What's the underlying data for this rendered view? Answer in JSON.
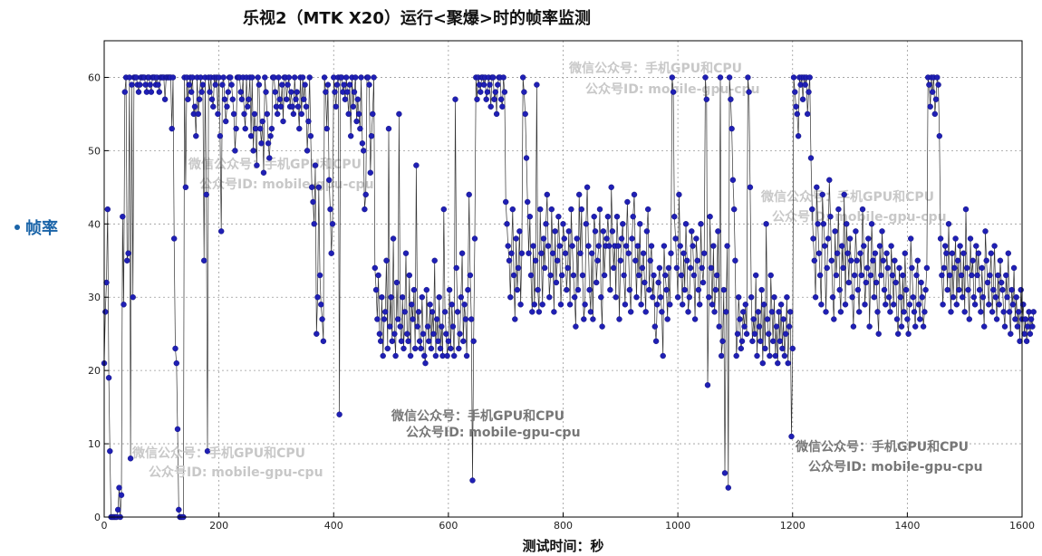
{
  "chart_data": {
    "type": "scatter",
    "title": "乐视2（MTK X20）运行<聚爆>时的帧率监测",
    "xlabel": "测试时间：秒",
    "ylabel": "",
    "legend": {
      "label": "帧率",
      "position": "left"
    },
    "xlim": [
      0,
      1600
    ],
    "ylim": [
      0,
      65
    ],
    "xticks": [
      0,
      200,
      400,
      600,
      800,
      1000,
      1200,
      1400,
      1600
    ],
    "yticks": [
      0,
      10,
      20,
      30,
      40,
      50,
      60
    ],
    "grid": true,
    "connected_line": true,
    "x_step": 2,
    "series": [
      {
        "name": "帧率",
        "color": "#1f1fb4",
        "x_start": 0,
        "values": [
          21,
          28,
          32,
          42,
          19,
          9,
          0,
          0,
          0,
          0,
          0,
          0,
          1,
          4,
          0,
          3,
          41,
          29,
          58,
          60,
          35,
          36,
          60,
          8,
          59,
          30,
          60,
          60,
          60,
          59,
          58,
          59,
          60,
          60,
          60,
          60,
          59,
          58,
          60,
          60,
          59,
          58,
          60,
          60,
          60,
          59,
          60,
          59,
          58,
          60,
          60,
          60,
          60,
          57,
          60,
          60,
          60,
          60,
          60,
          53,
          60,
          38,
          23,
          21,
          12,
          1,
          0,
          0,
          0,
          0,
          60,
          45,
          60,
          57,
          59,
          60,
          58,
          60,
          55,
          56,
          52,
          60,
          55,
          57,
          60,
          58,
          59,
          35,
          60,
          44,
          9,
          60,
          58,
          60,
          57,
          56,
          60,
          59,
          60,
          55,
          60,
          52,
          39,
          59,
          60,
          57,
          54,
          56,
          58,
          60,
          60,
          59,
          57,
          55,
          50,
          53,
          60,
          60,
          60,
          58,
          57,
          60,
          55,
          53,
          60,
          56,
          57,
          60,
          52,
          60,
          50,
          55,
          53,
          48,
          60,
          59,
          53,
          51,
          54,
          47,
          60,
          58,
          55,
          51,
          49,
          52,
          53,
          60,
          60,
          58,
          56,
          55,
          60,
          57,
          56,
          59,
          54,
          60,
          60,
          57,
          59,
          60,
          56,
          58,
          56,
          55,
          60,
          57,
          58,
          56,
          53,
          60,
          55,
          60,
          57,
          59,
          56,
          50,
          54,
          60,
          52,
          45,
          43,
          40,
          48,
          25,
          30,
          45,
          33,
          29,
          27,
          24,
          60,
          58,
          53,
          59,
          46,
          42,
          36,
          40,
          60,
          58,
          56,
          59,
          60,
          14,
          60,
          60,
          58,
          59,
          57,
          60,
          58,
          55,
          59,
          52,
          60,
          56,
          58,
          60,
          54,
          57,
          55,
          53,
          60,
          51,
          50,
          42,
          44,
          60,
          60,
          59,
          47,
          52,
          55,
          60,
          34,
          31,
          27,
          33,
          25,
          24,
          30,
          22,
          27,
          28,
          35,
          23,
          53,
          26,
          30,
          24,
          38,
          25,
          22,
          32,
          27,
          55,
          26,
          24,
          30,
          23,
          28,
          36,
          25,
          24,
          33,
          22,
          29,
          27,
          31,
          23,
          48,
          26,
          28,
          24,
          23,
          30,
          25,
          22,
          21,
          31,
          26,
          24,
          29,
          23,
          28,
          25,
          35,
          22,
          27,
          24,
          30,
          23,
          26,
          22,
          42,
          28,
          25,
          22,
          24,
          31,
          23,
          29,
          26,
          22,
          57,
          34,
          28,
          23,
          25,
          30,
          36,
          24,
          29,
          27,
          22,
          31,
          44,
          33,
          27,
          5,
          24,
          38,
          60,
          57,
          60,
          59,
          58,
          60,
          60,
          59,
          60,
          57,
          58,
          60,
          59,
          56,
          60,
          60,
          57,
          58,
          55,
          59,
          60,
          60,
          57,
          56,
          60,
          58,
          43,
          40,
          37,
          35,
          30,
          36,
          42,
          33,
          27,
          38,
          31,
          34,
          39,
          29,
          36,
          60,
          58,
          55,
          49,
          43,
          36,
          41,
          33,
          28,
          37,
          29,
          35,
          59,
          31,
          28,
          42,
          36,
          29,
          38,
          34,
          40,
          44,
          37,
          30,
          33,
          42,
          36,
          28,
          39,
          32,
          35,
          41,
          37,
          29,
          33,
          40,
          38,
          36,
          31,
          34,
          39,
          29,
          42,
          37,
          33,
          30,
          26,
          38,
          31,
          44,
          36,
          42,
          33,
          27,
          29,
          40,
          45,
          37,
          31,
          28,
          36,
          27,
          41,
          39,
          32,
          35,
          37,
          42,
          30,
          26,
          39,
          33,
          37,
          38,
          41,
          37,
          31,
          45,
          39,
          34,
          37,
          30,
          41,
          37,
          27,
          35,
          38,
          40,
          33,
          29,
          37,
          43,
          36,
          31,
          28,
          38,
          41,
          44,
          35,
          30,
          37,
          33,
          40,
          29,
          34,
          36,
          32,
          28,
          39,
          42,
          31,
          35,
          37,
          30,
          33,
          26,
          24,
          29,
          32,
          34,
          30,
          28,
          22,
          37,
          33,
          31,
          27,
          34,
          29,
          36,
          60,
          58,
          41,
          38,
          34,
          30,
          44,
          37,
          33,
          29,
          36,
          31,
          40,
          35,
          28,
          30,
          34,
          39,
          37,
          33,
          27,
          38,
          35,
          31,
          29,
          40,
          34,
          32,
          36,
          60,
          57,
          18,
          30,
          41,
          34,
          29,
          37,
          28,
          31,
          33,
          39,
          26,
          60,
          22,
          24,
          31,
          6,
          28,
          37,
          4,
          60,
          57,
          53,
          46,
          42,
          35,
          22,
          25,
          30,
          27,
          23,
          24,
          28,
          26,
          29,
          25,
          60,
          58,
          45,
          30,
          24,
          27,
          25,
          33,
          22,
          28,
          26,
          24,
          31,
          21,
          29,
          23,
          40,
          27,
          25,
          22,
          33,
          28,
          24,
          30,
          22,
          26,
          21,
          28,
          24,
          29,
          23,
          27,
          22,
          25,
          30,
          21,
          26,
          28,
          11,
          23,
          60,
          58,
          56,
          55,
          52,
          60,
          59,
          60,
          57,
          60,
          59,
          60,
          55,
          58,
          60,
          49,
          42,
          38,
          35,
          30,
          45,
          40,
          36,
          33,
          29,
          44,
          40,
          37,
          28,
          34,
          38,
          46,
          41,
          35,
          30,
          27,
          39,
          33,
          36,
          42,
          31,
          28,
          37,
          34,
          44,
          29,
          40,
          36,
          32,
          38,
          35,
          30,
          26,
          33,
          39,
          35,
          31,
          28,
          36,
          33,
          42,
          37,
          29,
          32,
          34,
          38,
          26,
          33,
          40,
          35,
          30,
          36,
          32,
          28,
          25,
          37,
          33,
          39,
          35,
          31,
          29,
          36,
          34,
          30,
          28,
          37,
          33,
          29,
          35,
          32,
          27,
          25,
          34,
          30,
          26,
          33,
          28,
          36,
          31,
          27,
          25,
          29,
          38,
          34,
          30,
          28,
          26,
          33,
          35,
          29,
          27,
          32,
          30,
          26,
          28,
          31,
          34,
          60,
          59,
          56,
          60,
          58,
          60,
          55,
          57,
          60,
          59,
          52,
          38,
          33,
          29,
          34,
          37,
          36,
          31,
          40,
          33,
          28,
          36,
          30,
          34,
          38,
          29,
          35,
          31,
          37,
          33,
          30,
          36,
          28,
          42,
          34,
          31,
          27,
          38,
          33,
          35,
          30,
          29,
          37,
          33,
          36,
          31,
          28,
          34,
          30,
          26,
          39,
          35,
          32,
          29,
          33,
          36,
          28,
          31,
          37,
          30,
          27,
          33,
          29,
          35,
          32,
          31,
          28,
          26,
          33,
          30,
          36,
          28,
          25,
          31,
          29,
          34,
          27,
          30,
          26,
          28,
          24,
          31,
          27,
          29,
          25,
          27,
          24,
          26,
          28,
          25,
          27,
          26,
          28
        ]
      }
    ]
  },
  "watermarks": [
    {
      "line1": "微信公众号：手机GPU和CPU",
      "line2": "公众号ID: mobile-gpu-cpu"
    }
  ]
}
